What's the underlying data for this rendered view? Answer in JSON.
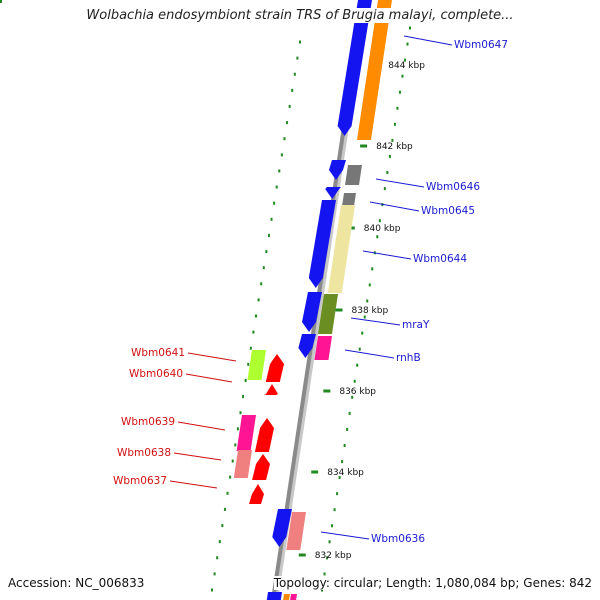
{
  "title": "Wolbachia endosymbiont strain TRS of Brugia malayi, complete...",
  "footer": {
    "accession_label": "Accession:",
    "accession_value": "NC_006833",
    "topology_label": "Topology:",
    "topology_value": "circular",
    "length_label": "Length:",
    "length_value": "1,080,084 bp",
    "genes_label": "Genes:",
    "genes_value": "842"
  },
  "colors": {
    "backbone": "#8a8a8a",
    "backbone_light": "#c8c8c8",
    "tick": "#208a20",
    "label_blue": "#1a1ad0",
    "label_red": "#d01010",
    "blue": "#1414f0",
    "orange": "#ff8c00",
    "gray": "#777777",
    "yellow": "#eee6a0",
    "olive": "#6b8e23",
    "magenta": "#ff1493",
    "red": "#ff0000",
    "lime": "#adff2f",
    "pink": "#f08080"
  },
  "ticks": [
    {
      "label": "844 kbp"
    },
    {
      "label": "842 kbp"
    },
    {
      "label": "840 kbp"
    },
    {
      "label": "838 kbp"
    },
    {
      "label": "836 kbp"
    },
    {
      "label": "834 kbp"
    },
    {
      "label": "832 kbp"
    }
  ],
  "genes": [
    {
      "name": "Wbm0647",
      "side": "right",
      "color": "blue"
    },
    {
      "name": "Wbm0646",
      "side": "right",
      "color": "blue"
    },
    {
      "name": "Wbm0645",
      "side": "right",
      "color": "blue"
    },
    {
      "name": "Wbm0644",
      "side": "right",
      "color": "blue"
    },
    {
      "name": "mraY",
      "side": "right",
      "color": "blue"
    },
    {
      "name": "rnhB",
      "side": "right",
      "color": "blue"
    },
    {
      "name": "Wbm0641",
      "side": "left",
      "color": "red"
    },
    {
      "name": "Wbm0640",
      "side": "left",
      "color": "red"
    },
    {
      "name": "Wbm0639",
      "side": "left",
      "color": "red"
    },
    {
      "name": "Wbm0638",
      "side": "left",
      "color": "red"
    },
    {
      "name": "Wbm0637",
      "side": "left",
      "color": "red"
    },
    {
      "name": "Wbm0636",
      "side": "right",
      "color": "blue"
    }
  ]
}
